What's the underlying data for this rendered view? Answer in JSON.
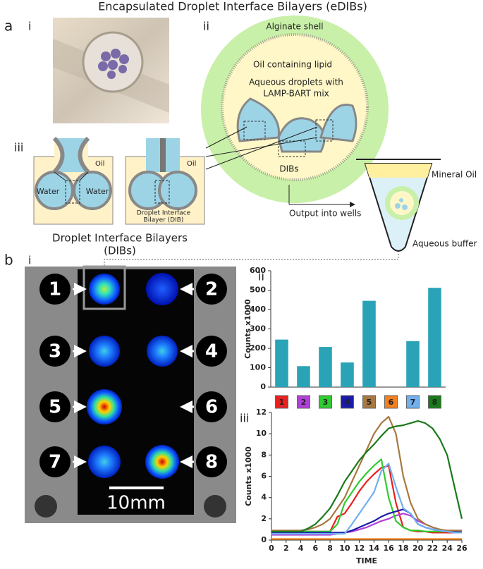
{
  "figure": {
    "title": "Encapsulated Droplet Interface Bilayers (eDIBs)",
    "panels": {
      "a": "a",
      "a_i": "i",
      "a_ii": "ii",
      "a_iii": "iii",
      "b": "b",
      "b_i": "i",
      "b_ii": "ii",
      "b_iii": "iii"
    },
    "capsule": {
      "shell": "Alginate shell",
      "oil": "Oil containing lipid",
      "droplets": [
        "Aqueous droplets with",
        "LAMP-BART mix"
      ],
      "dibs": "DIBs"
    },
    "output": "Output into wells",
    "tube": {
      "oil": "Mineral Oil",
      "buffer": "Aqueous buffer"
    },
    "dib": {
      "oil": [
        "Oil",
        "Oil"
      ],
      "water": [
        "Water",
        "Water"
      ],
      "bilayer": [
        "Droplet Interface",
        "Bilayer (DIB)"
      ],
      "caption": [
        "Droplet Interface Bilayers",
        "(DIBs)"
      ]
    },
    "wells": [
      "1",
      "2",
      "3",
      "4",
      "5",
      "6",
      "7",
      "8"
    ],
    "scale": "10mm"
  },
  "chart_data": [
    {
      "type": "bar",
      "ylabel": "Counts x1000",
      "categories": [
        "1",
        "2",
        "3",
        "4",
        "5",
        "6",
        "7",
        "8"
      ],
      "values": [
        245,
        108,
        207,
        127,
        445,
        0,
        237,
        512
      ],
      "color": "#2ba3b7",
      "ylim": [
        0,
        600
      ],
      "yticks": [
        0,
        100,
        200,
        300,
        400,
        500,
        600
      ]
    },
    {
      "type": "line",
      "xlabel": "TIME",
      "ylabel": "Counts x1000",
      "x": [
        0,
        1,
        2,
        3,
        4,
        5,
        6,
        7,
        8,
        9,
        10,
        11,
        12,
        13,
        14,
        15,
        16,
        17,
        18,
        19,
        20,
        21,
        22,
        23,
        24,
        25,
        26
      ],
      "xlim": [
        0,
        26
      ],
      "xticks": [
        0,
        2,
        4,
        6,
        8,
        10,
        12,
        14,
        16,
        18,
        20,
        22,
        24,
        26
      ],
      "ylim": [
        0,
        12
      ],
      "yticks": [
        0,
        2,
        4,
        6,
        8,
        10,
        12
      ],
      "series": [
        {
          "color": "#e8201f",
          "values": [
            0.7,
            0.7,
            0.7,
            0.7,
            0.7,
            0.8,
            0.8,
            0.8,
            0.8,
            2.2,
            2.5,
            3.5,
            4.6,
            5.5,
            6.2,
            6.8,
            7.0,
            3.5,
            1.2,
            0.9,
            0.8,
            0.8,
            0.7,
            0.7,
            0.7,
            0.7,
            0.7
          ]
        },
        {
          "color": "#b040d8",
          "values": [
            0.5,
            0.5,
            0.5,
            0.5,
            0.5,
            0.5,
            0.5,
            0.5,
            0.5,
            0.6,
            0.7,
            0.8,
            1.0,
            1.2,
            1.5,
            1.8,
            2.0,
            2.3,
            2.5,
            2.3,
            1.8,
            1.5,
            1.2,
            1.0,
            0.8,
            0.7,
            0.7
          ]
        },
        {
          "color": "#2ecc2e",
          "values": [
            0.8,
            0.8,
            0.8,
            0.8,
            0.8,
            0.8,
            0.8,
            0.8,
            0.8,
            1.5,
            3.5,
            4.5,
            5.5,
            6.3,
            7.0,
            7.6,
            4.0,
            1.8,
            1.2,
            0.9,
            0.9,
            0.8,
            0.8,
            0.8,
            0.8,
            0.8,
            0.8
          ]
        },
        {
          "color": "#1a1aa8",
          "values": [
            0.7,
            0.7,
            0.7,
            0.7,
            0.7,
            0.7,
            0.7,
            0.7,
            0.7,
            0.7,
            0.7,
            0.9,
            1.2,
            1.5,
            1.8,
            2.2,
            2.5,
            2.7,
            2.9,
            2.5,
            1.5,
            1.2,
            1.0,
            0.9,
            0.8,
            0.8,
            0.8
          ]
        },
        {
          "color": "#a87840",
          "values": [
            0.9,
            0.9,
            0.9,
            0.9,
            0.9,
            1.0,
            1.2,
            1.5,
            2.0,
            3.0,
            4.0,
            5.5,
            7.0,
            8.5,
            10.0,
            11.0,
            11.6,
            10.0,
            6.0,
            3.5,
            2.0,
            1.5,
            1.2,
            1.0,
            0.9,
            0.9,
            0.9
          ]
        },
        {
          "color": "#f08020",
          "values": [
            0.1,
            0.1,
            0.1,
            0.1,
            0.1,
            0.1,
            0.1,
            0.1,
            0.1,
            0.1,
            0.1,
            0.1,
            0.1,
            0.1,
            0.1,
            0.1,
            0.1,
            0.1,
            0.1,
            0.1,
            0.1,
            0.1,
            0.1,
            0.1,
            0.1,
            0.1,
            0.1
          ]
        },
        {
          "color": "#70b0f0",
          "values": [
            0.6,
            0.6,
            0.6,
            0.6,
            0.6,
            0.6,
            0.6,
            0.6,
            0.6,
            0.6,
            0.6,
            1.5,
            2.5,
            3.5,
            4.5,
            6.5,
            7.2,
            5.0,
            3.0,
            2.5,
            1.5,
            1.2,
            1.0,
            0.9,
            0.8,
            0.7,
            0.7
          ]
        },
        {
          "color": "#1a7a1a",
          "values": [
            0.8,
            0.8,
            0.8,
            0.8,
            0.8,
            1.1,
            1.5,
            2.2,
            3.0,
            4.2,
            5.5,
            6.5,
            7.5,
            8.3,
            9.0,
            9.8,
            10.5,
            10.7,
            10.8,
            11.0,
            11.2,
            11.0,
            10.5,
            9.5,
            8.0,
            5.0,
            2.0
          ]
        }
      ]
    }
  ]
}
